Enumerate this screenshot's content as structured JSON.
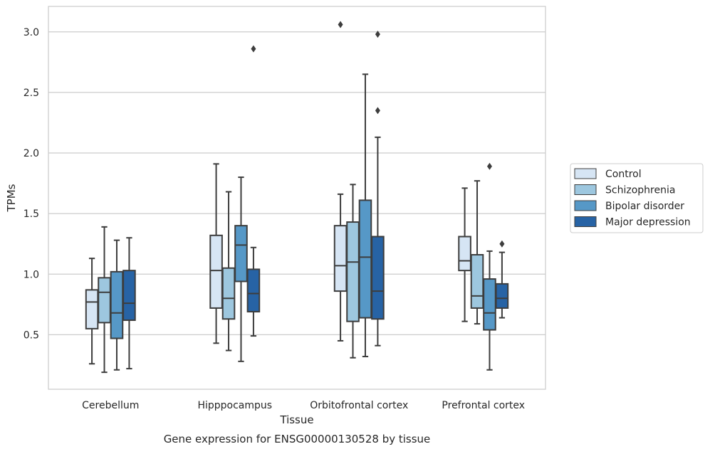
{
  "chart_data": {
    "type": "box",
    "title": "",
    "caption": "Gene expression for ENSG00000130528 by tissue",
    "xlabel": "Tissue",
    "ylabel": "TPMs",
    "ylim": [
      0.05,
      3.21
    ],
    "yticks": [
      0.5,
      1.0,
      1.5,
      2.0,
      2.5,
      3.0
    ],
    "ytick_labels": [
      "0.5",
      "1.0",
      "1.5",
      "2.0",
      "2.5",
      "3.0"
    ],
    "grid": "horizontal",
    "legend_position": "right",
    "categories": [
      "Cerebellum",
      "Hipppocampus",
      "Orbitofrontal cortex",
      "Prefrontal cortex"
    ],
    "series": [
      {
        "name": "Control",
        "color": "#d6e5f4",
        "boxes": [
          {
            "whisker_low": 0.26,
            "q1": 0.55,
            "median": 0.77,
            "q3": 0.87,
            "whisker_high": 1.13,
            "outliers": []
          },
          {
            "whisker_low": 0.43,
            "q1": 0.72,
            "median": 1.03,
            "q3": 1.32,
            "whisker_high": 1.91,
            "outliers": []
          },
          {
            "whisker_low": 0.45,
            "q1": 0.86,
            "median": 1.07,
            "q3": 1.4,
            "whisker_high": 1.66,
            "outliers": [
              3.06
            ]
          },
          {
            "whisker_low": 0.61,
            "q1": 1.03,
            "median": 1.11,
            "q3": 1.31,
            "whisker_high": 1.71,
            "outliers": []
          }
        ]
      },
      {
        "name": "Schizophrenia",
        "color": "#9dc7df",
        "boxes": [
          {
            "whisker_low": 0.19,
            "q1": 0.6,
            "median": 0.85,
            "q3": 0.97,
            "whisker_high": 1.39,
            "outliers": []
          },
          {
            "whisker_low": 0.37,
            "q1": 0.63,
            "median": 0.8,
            "q3": 1.05,
            "whisker_high": 1.68,
            "outliers": []
          },
          {
            "whisker_low": 0.31,
            "q1": 0.61,
            "median": 1.1,
            "q3": 1.43,
            "whisker_high": 1.74,
            "outliers": []
          },
          {
            "whisker_low": 0.59,
            "q1": 0.72,
            "median": 0.82,
            "q3": 1.16,
            "whisker_high": 1.77,
            "outliers": []
          }
        ]
      },
      {
        "name": "Bipolar disorder",
        "color": "#5698c7",
        "boxes": [
          {
            "whisker_low": 0.21,
            "q1": 0.47,
            "median": 0.68,
            "q3": 1.02,
            "whisker_high": 1.28,
            "outliers": []
          },
          {
            "whisker_low": 0.28,
            "q1": 0.94,
            "median": 1.24,
            "q3": 1.4,
            "whisker_high": 1.8,
            "outliers": []
          },
          {
            "whisker_low": 0.32,
            "q1": 0.64,
            "median": 1.14,
            "q3": 1.61,
            "whisker_high": 2.65,
            "outliers": []
          },
          {
            "whisker_low": 0.21,
            "q1": 0.54,
            "median": 0.68,
            "q3": 0.96,
            "whisker_high": 1.19,
            "outliers": [
              1.89
            ]
          }
        ]
      },
      {
        "name": "Major depression",
        "color": "#2763a5",
        "boxes": [
          {
            "whisker_low": 0.22,
            "q1": 0.62,
            "median": 0.76,
            "q3": 1.03,
            "whisker_high": 1.3,
            "outliers": []
          },
          {
            "whisker_low": 0.49,
            "q1": 0.69,
            "median": 0.84,
            "q3": 1.04,
            "whisker_high": 1.22,
            "outliers": [
              2.86
            ]
          },
          {
            "whisker_low": 0.41,
            "q1": 0.63,
            "median": 0.86,
            "q3": 1.31,
            "whisker_high": 2.13,
            "outliers": [
              2.35,
              2.98
            ]
          },
          {
            "whisker_low": 0.64,
            "q1": 0.72,
            "median": 0.8,
            "q3": 0.92,
            "whisker_high": 1.18,
            "outliers": [
              1.25
            ]
          }
        ]
      }
    ]
  }
}
